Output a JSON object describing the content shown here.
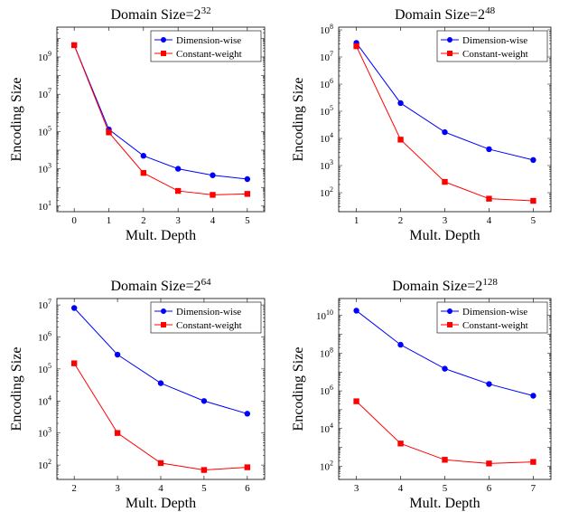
{
  "chart_data": [
    {
      "type": "line",
      "title": "Domain Size=2",
      "title_exponent": "32",
      "xlabel": "Mult. Depth",
      "ylabel": "Encoding Size",
      "yscale": "log",
      "xlim": [
        -0.5,
        5.5
      ],
      "ylim_exponent": [
        0.7,
        10.6
      ],
      "x_ticks": [
        0,
        1,
        2,
        3,
        4,
        5
      ],
      "y_tick_exponents": [
        1,
        3,
        5,
        7,
        9
      ],
      "grid": false,
      "legend_position": "top-right",
      "series": [
        {
          "name": "Dimension-wise",
          "color": "#0000ff",
          "marker": "circle",
          "x": [
            0,
            1,
            2,
            3,
            4,
            5
          ],
          "y": [
            4300000000,
            130000,
            5000,
            1000,
            450,
            280
          ]
        },
        {
          "name": "Constant-weight",
          "color": "#ff0000",
          "marker": "square",
          "x": [
            0,
            1,
            2,
            3,
            4,
            5
          ],
          "y": [
            4300000000,
            90000,
            600,
            65,
            40,
            45
          ]
        }
      ]
    },
    {
      "type": "line",
      "title": "Domain Size=2",
      "title_exponent": "48",
      "xlabel": "Mult. Depth",
      "ylabel": "Encoding Size",
      "yscale": "log",
      "xlim": [
        0.6,
        5.4
      ],
      "ylim_exponent": [
        1.3,
        8.1
      ],
      "x_ticks": [
        1,
        2,
        3,
        4,
        5
      ],
      "y_tick_exponents": [
        2,
        3,
        4,
        5,
        6,
        7,
        8
      ],
      "grid": false,
      "legend_position": "top-right",
      "series": [
        {
          "name": "Dimension-wise",
          "color": "#0000ff",
          "marker": "circle",
          "x": [
            1,
            2,
            3,
            4,
            5
          ],
          "y": [
            33000000,
            200000,
            17000,
            4000,
            1600
          ]
        },
        {
          "name": "Constant-weight",
          "color": "#ff0000",
          "marker": "square",
          "x": [
            1,
            2,
            3,
            4,
            5
          ],
          "y": [
            25000000,
            9000,
            250,
            60,
            50
          ]
        }
      ]
    },
    {
      "type": "line",
      "title": "Domain Size=2",
      "title_exponent": "64",
      "xlabel": "Mult. Depth",
      "ylabel": "Encoding Size",
      "yscale": "log",
      "xlim": [
        1.6,
        6.4
      ],
      "ylim_exponent": [
        1.55,
        7.2
      ],
      "x_ticks": [
        2,
        3,
        4,
        5,
        6
      ],
      "y_tick_exponents": [
        2,
        3,
        4,
        5,
        6,
        7
      ],
      "grid": false,
      "legend_position": "top-right",
      "series": [
        {
          "name": "Dimension-wise",
          "color": "#0000ff",
          "marker": "circle",
          "x": [
            2,
            3,
            4,
            5,
            6
          ],
          "y": [
            8000000,
            280000,
            36000,
            10000,
            4000
          ]
        },
        {
          "name": "Constant-weight",
          "color": "#ff0000",
          "marker": "square",
          "x": [
            2,
            3,
            4,
            5,
            6
          ],
          "y": [
            150000,
            1000,
            115,
            70,
            85
          ]
        }
      ]
    },
    {
      "type": "line",
      "title": "Domain Size=2",
      "title_exponent": "128",
      "xlabel": "Mult. Depth",
      "ylabel": "Encoding Size",
      "yscale": "log",
      "xlim": [
        2.6,
        7.4
      ],
      "ylim_exponent": [
        1.3,
        10.9
      ],
      "x_ticks": [
        3,
        4,
        5,
        6,
        7
      ],
      "y_tick_exponents": [
        2,
        4,
        6,
        8,
        10
      ],
      "grid": false,
      "legend_position": "top-right",
      "series": [
        {
          "name": "Dimension-wise",
          "color": "#0000ff",
          "marker": "circle",
          "x": [
            3,
            4,
            5,
            6,
            7
          ],
          "y": [
            18000000000,
            280000000,
            15000000,
            2300000,
            550000
          ]
        },
        {
          "name": "Constant-weight",
          "color": "#ff0000",
          "marker": "square",
          "x": [
            3,
            4,
            5,
            6,
            7
          ],
          "y": [
            280000,
            1600,
            220,
            140,
            170
          ]
        }
      ]
    }
  ]
}
